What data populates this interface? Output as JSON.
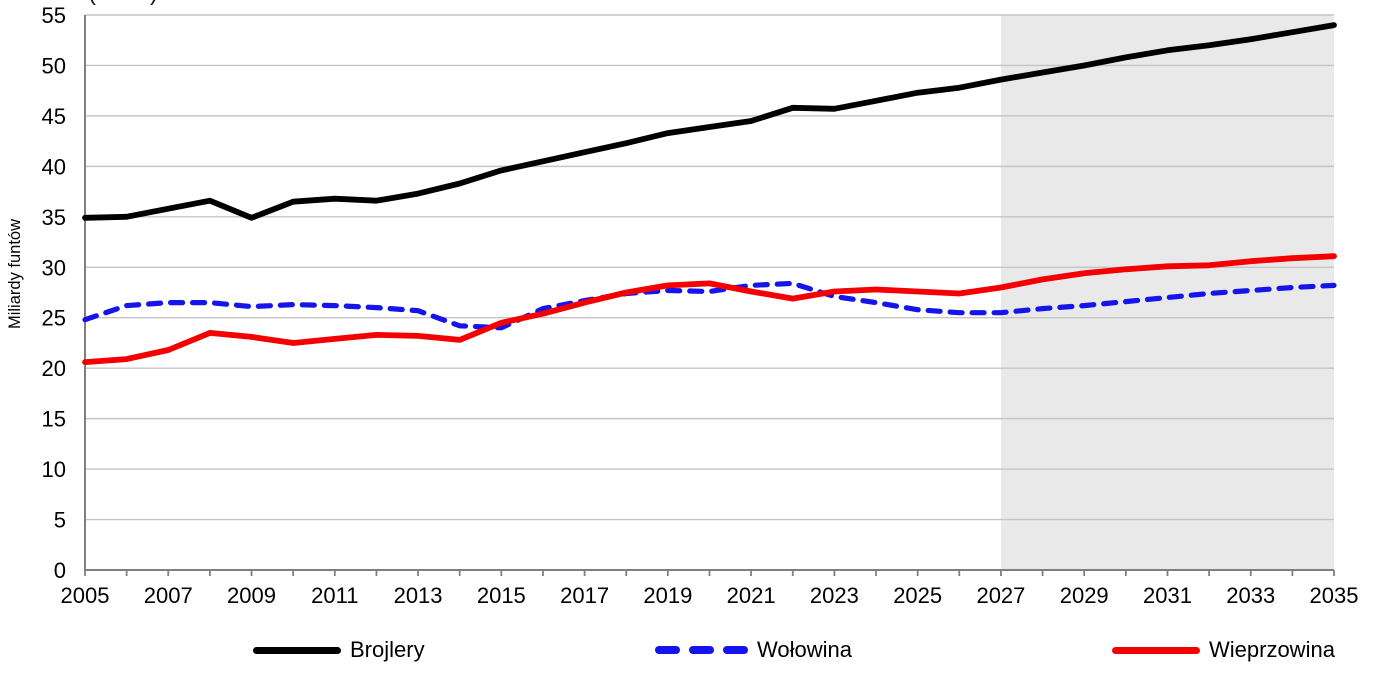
{
  "chart_data": {
    "type": "line",
    "title_fragment": "(……)",
    "ylabel": "Miliardy funtów",
    "ylim": [
      0,
      55
    ],
    "ytick_step": 5,
    "yticks": [
      0,
      5,
      10,
      15,
      20,
      25,
      30,
      35,
      40,
      45,
      50,
      55
    ],
    "x": [
      2005,
      2006,
      2007,
      2008,
      2009,
      2010,
      2011,
      2012,
      2013,
      2014,
      2015,
      2016,
      2017,
      2018,
      2019,
      2020,
      2021,
      2022,
      2023,
      2024,
      2025,
      2026,
      2027,
      2028,
      2029,
      2030,
      2031,
      2032,
      2033,
      2034,
      2035
    ],
    "x_tick_labels": [
      "2005",
      "2007",
      "2009",
      "2011",
      "2013",
      "2015",
      "2017",
      "2019",
      "2021",
      "2023",
      "2025",
      "2027",
      "2029",
      "2031",
      "2033",
      "2035"
    ],
    "projection_start": 2027,
    "grid": true,
    "legend_position": "bottom",
    "series": [
      {
        "name": "Brojlery",
        "style": "solid",
        "color": "#000000",
        "values": [
          34.9,
          35.0,
          35.8,
          36.6,
          34.9,
          36.5,
          36.8,
          36.6,
          37.3,
          38.3,
          39.6,
          40.5,
          41.4,
          42.3,
          43.3,
          43.9,
          44.5,
          45.8,
          45.7,
          46.5,
          47.3,
          47.8,
          48.6,
          49.3,
          50.0,
          50.8,
          51.5,
          52.0,
          52.6,
          53.3,
          54.0
        ]
      },
      {
        "name": "Wołowina",
        "style": "dashed",
        "color": "#1414eb",
        "values": [
          24.8,
          26.2,
          26.5,
          26.5,
          26.1,
          26.3,
          26.2,
          26.0,
          25.7,
          24.2,
          24.0,
          25.9,
          26.7,
          27.4,
          27.7,
          27.6,
          28.2,
          28.4,
          27.1,
          26.5,
          25.8,
          25.5,
          25.5,
          25.9,
          26.2,
          26.6,
          27.0,
          27.4,
          27.7,
          28.0,
          28.2
        ]
      },
      {
        "name": "Wieprzowina",
        "style": "solid",
        "color": "#f50000",
        "values": [
          20.6,
          20.9,
          21.8,
          23.5,
          23.1,
          22.5,
          22.9,
          23.3,
          23.2,
          22.8,
          24.5,
          25.4,
          26.5,
          27.5,
          28.2,
          28.4,
          27.6,
          26.9,
          27.6,
          27.8,
          27.6,
          27.4,
          28.0,
          28.8,
          29.4,
          29.8,
          30.1,
          30.2,
          30.6,
          30.9,
          31.1
        ]
      }
    ],
    "colors": {
      "projection_shade": "#e9e9e9",
      "gridline": "#c4c4c4",
      "axis": "#7f7f7f",
      "text": "#000000"
    }
  }
}
